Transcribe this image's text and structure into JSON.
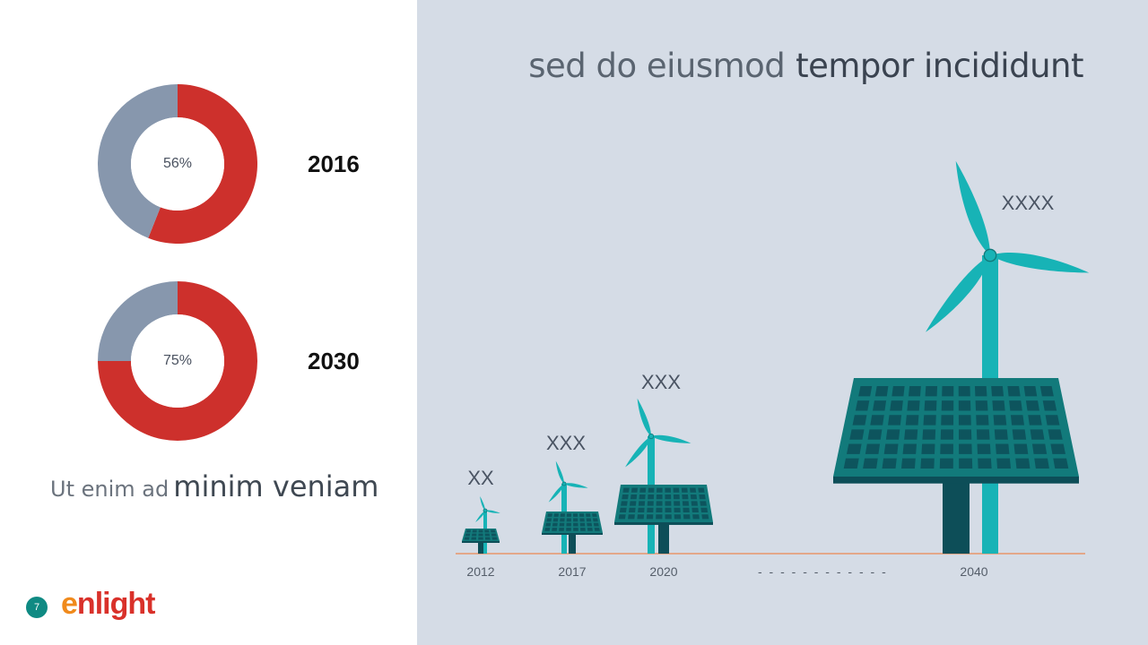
{
  "title": {
    "light": "sed do eiusmod",
    "strong": "tempor incididunt"
  },
  "subtitle": {
    "light": "Ut enim ad",
    "strong": "minim veniam"
  },
  "page_number": "7",
  "logo": {
    "e": "e",
    "rest": "nlight"
  },
  "colors": {
    "donut_primary": "#cd302c",
    "donut_secondary": "#8797ad",
    "turbine": "#17b3b6",
    "panel": "#127a7b",
    "panel_dark": "#0d4e58",
    "axis": "#e8956a",
    "page_badge": "#0f8a83"
  },
  "chart_data": [
    {
      "type": "pie",
      "year": "2016",
      "value_label": "56%",
      "slices": [
        {
          "value": 56,
          "color": "#cd302c"
        },
        {
          "value": 44,
          "color": "#8797ad"
        }
      ]
    },
    {
      "type": "pie",
      "year": "2030",
      "value_label": "75%",
      "slices": [
        {
          "value": 75,
          "color": "#cd302c"
        },
        {
          "value": 25,
          "color": "#8797ad"
        }
      ]
    },
    {
      "type": "bar",
      "categories": [
        "2012",
        "2017",
        "2020",
        "2040"
      ],
      "labels": [
        "XX",
        "XXX",
        "XXX",
        "XXXX"
      ],
      "values": [
        1,
        2,
        3,
        10
      ],
      "gap_label": "- - - - - - - - - - - -"
    }
  ]
}
